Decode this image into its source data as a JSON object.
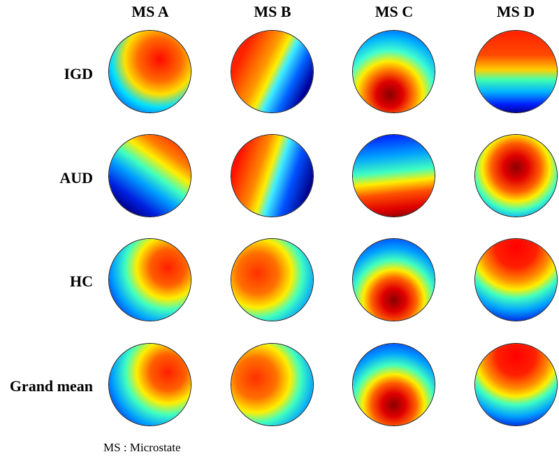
{
  "figure": {
    "columns": [
      "MS A",
      "MS B",
      "MS C",
      "MS D"
    ],
    "rows": [
      "IGD",
      "AUD",
      "HC",
      "Grand mean"
    ],
    "footnote": "MS : Microstate"
  },
  "colors": {
    "colormap": "jet",
    "dark_red": "#7f0000",
    "red": "#ff1a00",
    "orange": "#ff8a00",
    "yellow": "#fff000",
    "cyan": "#00d8ff",
    "blue": "#0066ff",
    "dark_blue": "#00008f"
  }
}
